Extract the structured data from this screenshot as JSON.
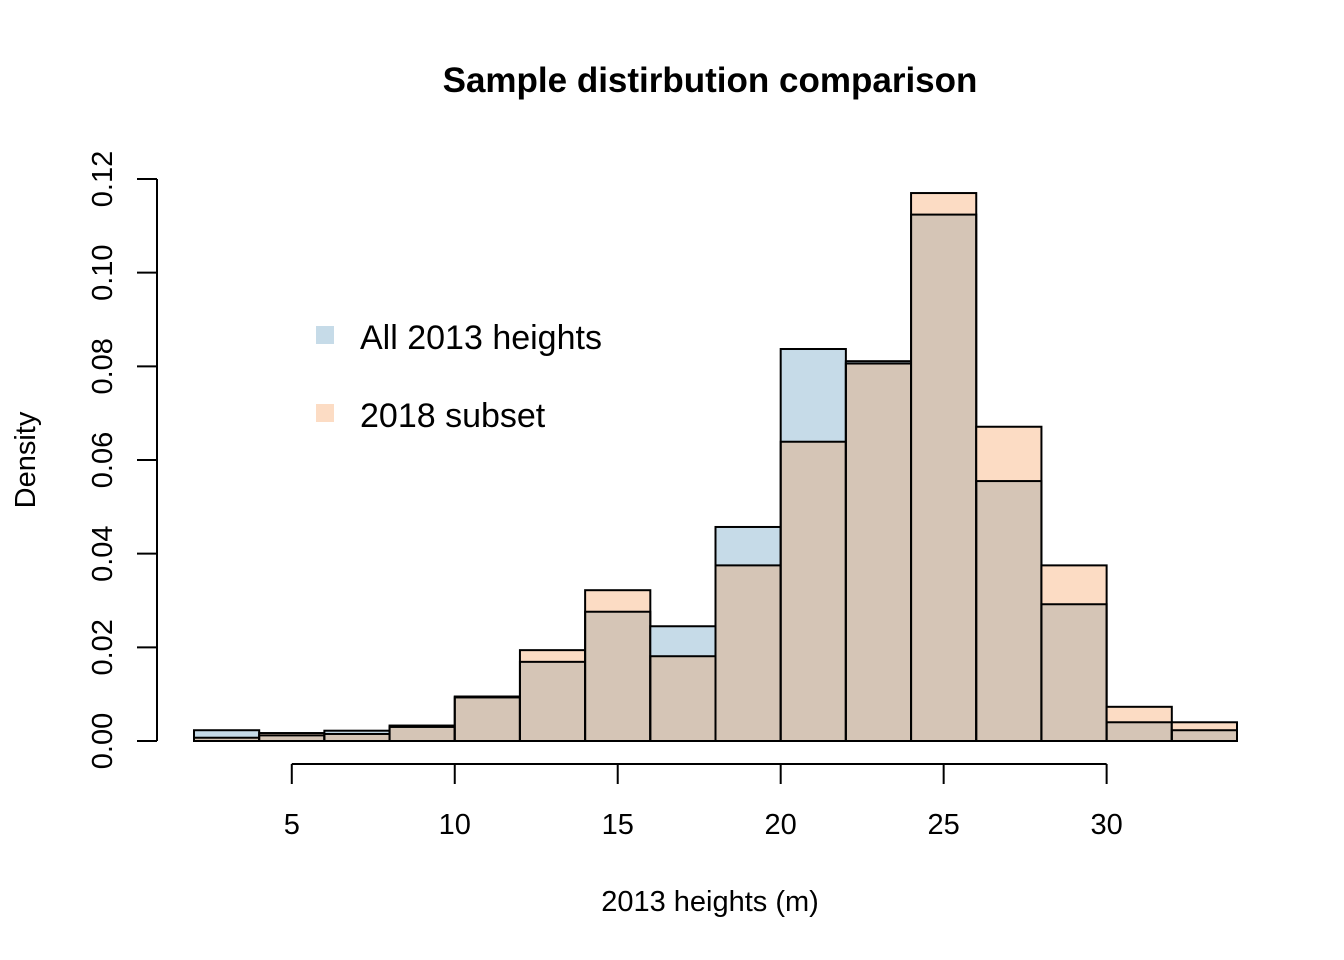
{
  "chart_data": {
    "type": "bar",
    "title": "Sample distirbution comparison",
    "xlabel": "2013 heights (m)",
    "ylabel": "Density",
    "xlim": [
      2,
      34
    ],
    "ylim": [
      0,
      0.12
    ],
    "x_ticks": [
      5,
      10,
      15,
      20,
      25,
      30
    ],
    "x_tick_labels": [
      "5",
      "10",
      "15",
      "20",
      "25",
      "30"
    ],
    "y_ticks": [
      0,
      0.02,
      0.04,
      0.06,
      0.08,
      0.1,
      0.12
    ],
    "y_tick_labels": [
      "0.00",
      "0.02",
      "0.04",
      "0.06",
      "0.08",
      "0.10",
      "0.12"
    ],
    "bin_edges": [
      2,
      4,
      6,
      8,
      10,
      12,
      14,
      16,
      18,
      20,
      22,
      24,
      26,
      28,
      30,
      32,
      34
    ],
    "series": [
      {
        "name": "All 2013 heights",
        "color": "#c6dbe8",
        "values": [
          0.0023,
          0.0012,
          0.0022,
          0.0033,
          0.0093,
          0.0169,
          0.0276,
          0.0245,
          0.0457,
          0.0837,
          0.0811,
          0.1124,
          0.0555,
          0.0292,
          0.004,
          0.0023
        ]
      },
      {
        "name": "2018 subset",
        "color": "#fcdcc4",
        "values": [
          0.0007,
          0.0017,
          0.0015,
          0.003,
          0.0095,
          0.0194,
          0.0322,
          0.0181,
          0.0375,
          0.0639,
          0.0806,
          0.117,
          0.0671,
          0.0375,
          0.0073,
          0.004
        ]
      }
    ],
    "overlap_color": "#d5c5b6",
    "legend": {
      "position": "top-left",
      "entries": [
        "All 2013 heights",
        "2018 subset"
      ]
    },
    "grid": false
  }
}
